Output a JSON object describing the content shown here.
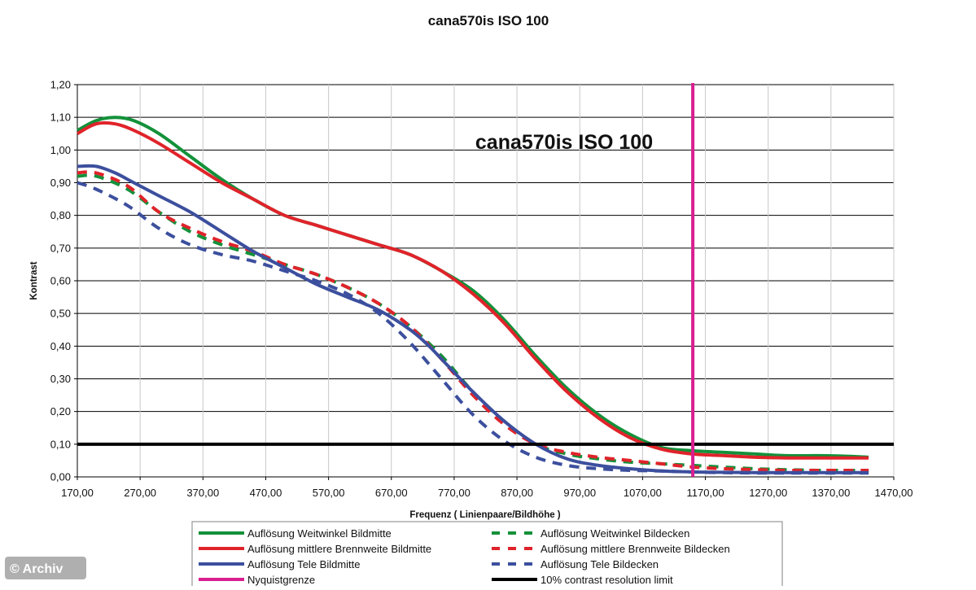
{
  "credit": "© Archiv",
  "chart_data": {
    "type": "line",
    "title": "cana570is ISO 100",
    "inner_title": "cana570is ISO 100",
    "xlabel": "Frequenz ( Linienpaare/Bildhöhe )",
    "ylabel": "Kontrast",
    "xlim": [
      170,
      1470
    ],
    "ylim": [
      0,
      1.2
    ],
    "x_ticks": [
      170,
      270,
      370,
      470,
      570,
      670,
      770,
      870,
      970,
      1070,
      1170,
      1270,
      1370,
      1470
    ],
    "x_tick_labels": [
      "170,00",
      "270,00",
      "370,00",
      "470,00",
      "570,00",
      "670,00",
      "770,00",
      "870,00",
      "970,00",
      "1070,00",
      "1170,00",
      "1270,00",
      "1370,00",
      "1470,00"
    ],
    "y_ticks": [
      0,
      0.1,
      0.2,
      0.3,
      0.4,
      0.5,
      0.6,
      0.7,
      0.8,
      0.9,
      1.0,
      1.1,
      1.2
    ],
    "y_tick_labels": [
      "0,00",
      "0,10",
      "0,20",
      "0,30",
      "0,40",
      "0,50",
      "0,60",
      "0,70",
      "0,80",
      "0,90",
      "1,00",
      "1,10",
      "1,20"
    ],
    "grid": "horizontal",
    "legend_position": "bottom",
    "series": [
      {
        "name": "Auflösung Weitwinkel Bildmitte",
        "color": "#13913a",
        "dash": "solid",
        "x": [
          170,
          200,
          230,
          260,
          300,
          350,
          400,
          450,
          500,
          550,
          600,
          650,
          700,
          750,
          800,
          850,
          900,
          950,
          1000,
          1050,
          1100,
          1150,
          1200,
          1250,
          1300,
          1350,
          1400,
          1430
        ],
        "y": [
          1.06,
          1.09,
          1.1,
          1.09,
          1.05,
          0.98,
          0.91,
          0.85,
          0.8,
          0.77,
          0.74,
          0.71,
          0.68,
          0.63,
          0.57,
          0.48,
          0.37,
          0.27,
          0.19,
          0.13,
          0.09,
          0.08,
          0.075,
          0.07,
          0.065,
          0.065,
          0.063,
          0.06
        ]
      },
      {
        "name": "Auflösung mittlere Brennweite Bildmitte",
        "color": "#e0232a",
        "dash": "solid",
        "x": [
          170,
          200,
          230,
          260,
          300,
          350,
          400,
          450,
          500,
          550,
          600,
          650,
          700,
          750,
          800,
          850,
          900,
          950,
          1000,
          1050,
          1100,
          1150,
          1200,
          1250,
          1300,
          1350,
          1400,
          1430
        ],
        "y": [
          1.05,
          1.08,
          1.08,
          1.06,
          1.02,
          0.96,
          0.9,
          0.85,
          0.8,
          0.77,
          0.74,
          0.71,
          0.68,
          0.63,
          0.56,
          0.47,
          0.36,
          0.26,
          0.18,
          0.12,
          0.085,
          0.07,
          0.065,
          0.06,
          0.058,
          0.058,
          0.058,
          0.058
        ]
      },
      {
        "name": "Auflösung Tele Bildmitte",
        "color": "#3c4f9e",
        "dash": "solid",
        "x": [
          170,
          200,
          230,
          260,
          300,
          350,
          400,
          450,
          500,
          550,
          600,
          650,
          700,
          730,
          760,
          800,
          850,
          900,
          950,
          1000,
          1050,
          1100,
          1150,
          1200,
          1250,
          1300,
          1350,
          1400,
          1430
        ],
        "y": [
          0.95,
          0.95,
          0.93,
          0.9,
          0.86,
          0.81,
          0.75,
          0.69,
          0.64,
          0.59,
          0.55,
          0.51,
          0.45,
          0.4,
          0.34,
          0.26,
          0.17,
          0.1,
          0.055,
          0.035,
          0.025,
          0.018,
          0.015,
          0.014,
          0.013,
          0.013,
          0.013,
          0.013,
          0.013
        ]
      },
      {
        "name": "Nyquistgrenze",
        "color": "#d91f8f",
        "dash": "solid",
        "type": "vertical",
        "x_value": 1150
      },
      {
        "name": "Auflösung Weitwinkel Bildecken",
        "color": "#13913a",
        "dash": "dashed",
        "x": [
          170,
          200,
          250,
          300,
          350,
          400,
          450,
          500,
          550,
          600,
          650,
          700,
          750,
          800,
          850,
          900,
          950,
          1000,
          1050,
          1100,
          1150,
          1200,
          1250,
          1300,
          1350,
          1400,
          1430
        ],
        "y": [
          0.92,
          0.92,
          0.88,
          0.81,
          0.75,
          0.71,
          0.68,
          0.65,
          0.62,
          0.58,
          0.53,
          0.46,
          0.37,
          0.26,
          0.17,
          0.1,
          0.07,
          0.055,
          0.045,
          0.04,
          0.035,
          0.03,
          0.025,
          0.022,
          0.02,
          0.02,
          0.02
        ]
      },
      {
        "name": "Auflösung mittlere Brennweite Bildecken",
        "color": "#e0232a",
        "dash": "dashed",
        "x": [
          170,
          200,
          250,
          300,
          350,
          400,
          450,
          500,
          550,
          600,
          650,
          700,
          750,
          800,
          850,
          900,
          950,
          1000,
          1050,
          1100,
          1150,
          1200,
          1250,
          1300,
          1350,
          1400,
          1430
        ],
        "y": [
          0.93,
          0.93,
          0.89,
          0.81,
          0.76,
          0.72,
          0.69,
          0.65,
          0.62,
          0.58,
          0.53,
          0.46,
          0.36,
          0.25,
          0.16,
          0.1,
          0.075,
          0.06,
          0.05,
          0.04,
          0.03,
          0.025,
          0.022,
          0.02,
          0.02,
          0.02,
          0.02
        ]
      },
      {
        "name": "Auflösung Tele Bildecken",
        "color": "#3c4f9e",
        "dash": "dashed",
        "x": [
          170,
          200,
          250,
          300,
          350,
          400,
          450,
          500,
          550,
          600,
          650,
          700,
          750,
          800,
          850,
          900,
          950,
          1000,
          1050,
          1100,
          1150,
          1200,
          1250,
          1300,
          1350,
          1400,
          1430
        ],
        "y": [
          0.9,
          0.88,
          0.83,
          0.76,
          0.71,
          0.68,
          0.66,
          0.63,
          0.6,
          0.56,
          0.5,
          0.41,
          0.3,
          0.19,
          0.11,
          0.06,
          0.035,
          0.025,
          0.02,
          0.018,
          0.015,
          0.013,
          0.012,
          0.012,
          0.012,
          0.012,
          0.012
        ]
      },
      {
        "name": "10% contrast resolution limit",
        "color": "#000000",
        "dash": "solid",
        "type": "horizontal",
        "y_value": 0.1
      }
    ]
  }
}
